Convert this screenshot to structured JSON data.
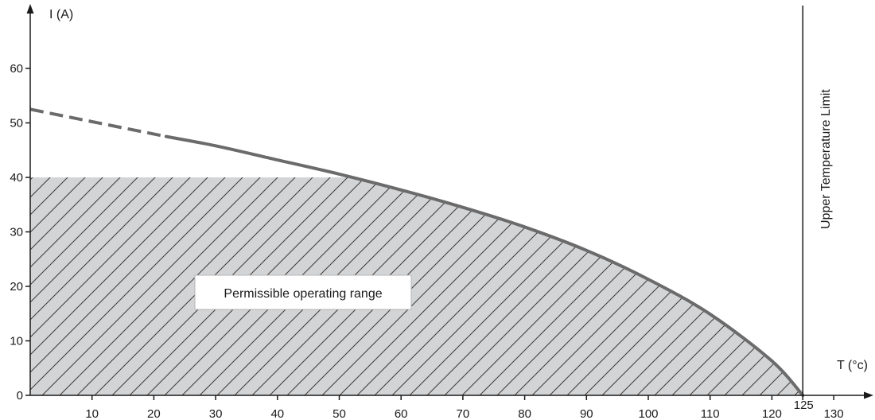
{
  "chart_data": {
    "type": "area",
    "xlabel": "T (°c)",
    "ylabel": "I (A)",
    "xlim": [
      0,
      135
    ],
    "ylim": [
      0,
      70
    ],
    "x_ticks": [
      10,
      20,
      30,
      40,
      50,
      60,
      70,
      80,
      90,
      100,
      110,
      120,
      125,
      130
    ],
    "x_tick_labels": [
      "10",
      "20",
      "30",
      "40",
      "50",
      "60",
      "70",
      "80",
      "90",
      "100",
      "110",
      "120",
      "125",
      "130"
    ],
    "y_ticks": [
      0,
      10,
      20,
      30,
      40,
      50,
      60
    ],
    "y_tick_labels": [
      "0",
      "10",
      "20",
      "30",
      "40",
      "50",
      "60"
    ],
    "series": [
      {
        "dashed_segment": [
          [
            0,
            52.5
          ],
          [
            22,
            47.5
          ]
        ],
        "solid_curve": [
          [
            22,
            47.5
          ],
          [
            30,
            45.8
          ],
          [
            40,
            43.2
          ],
          [
            50,
            40.6
          ],
          [
            60,
            37.7
          ],
          [
            70,
            34.5
          ],
          [
            80,
            30.9
          ],
          [
            90,
            26.6
          ],
          [
            100,
            21.3
          ],
          [
            110,
            14.9
          ],
          [
            120,
            6.3
          ],
          [
            125,
            0
          ]
        ]
      }
    ],
    "shaded_region": {
      "label": "Permissible operating range",
      "max_current": 40,
      "fill": "#d3d4d6",
      "hatch": "#3a3a3a"
    },
    "limit_line": {
      "x": 125,
      "label": "Upper Temperature Limit"
    },
    "colors": {
      "curve": "#6b6b6b",
      "axis": "#1a1a1a"
    }
  }
}
